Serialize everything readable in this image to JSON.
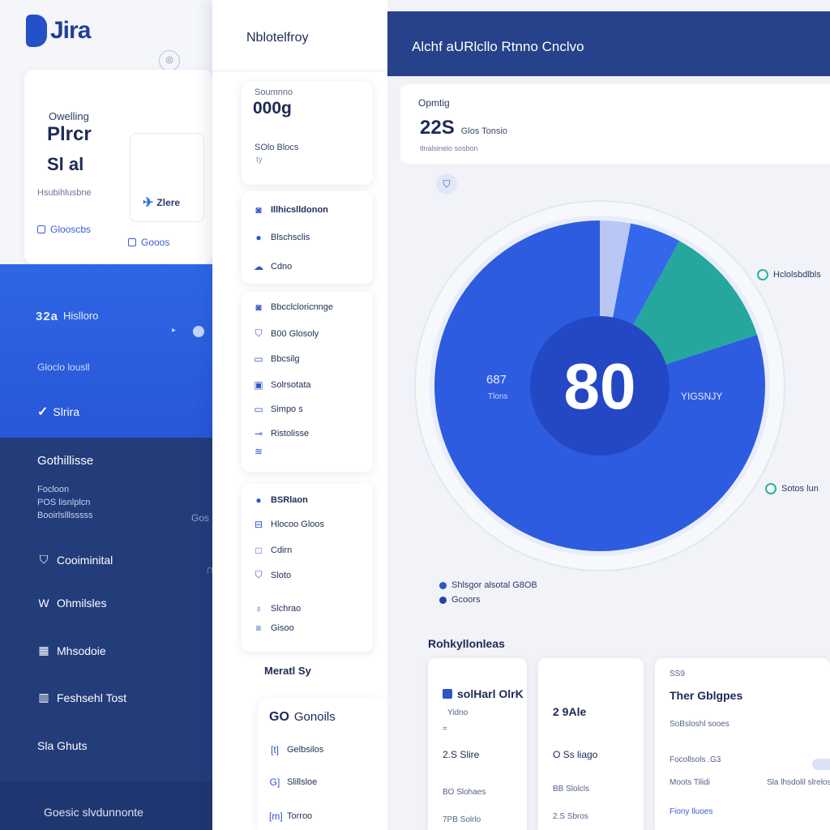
{
  "app": {
    "logo_text": "Jira"
  },
  "sidebar": {
    "profile_card": {
      "label": "Owelling",
      "title_line1": "Plrcr",
      "title_line2": "Sl al",
      "meta": "Hsubihlusbne",
      "inner_label": "Zlere",
      "link1": "Glooscbs",
      "link2": "Gooos"
    },
    "blue_section": {
      "item1_code": "32a",
      "item1_label": "Hislloro",
      "item2": "Gloclo lousll",
      "item3": "Slrira"
    },
    "dark_section": {
      "title": "Gothillisse",
      "line1": "Focloon",
      "line2": "POS lisnlplcn",
      "line3": "Booirlslllsssss",
      "right_text": "Gos",
      "nav": [
        {
          "label": "Cooiminital",
          "icon": "shield-icon"
        },
        {
          "label": "Ohmilsles",
          "icon": "w-icon"
        },
        {
          "label": "Mhsodoie",
          "icon": "grid-icon"
        },
        {
          "label": "Feshsehl Tost",
          "icon": "chart-icon"
        },
        {
          "label": "Sla Ghuts",
          "icon": "dot-icon"
        }
      ],
      "footer": "Goesic slvdunnonte"
    }
  },
  "mid_panel": {
    "title": "Nblotelfroy",
    "summary_card": {
      "label": "Soumnno",
      "value": "000g",
      "desc": "SOlo Blocs",
      "extra": "ty"
    },
    "card2": [
      {
        "label": "Illhicslldonon",
        "bold": true
      },
      {
        "label": "Blschsclis",
        "bold": false
      },
      {
        "label": "Cdno",
        "bold": false
      }
    ],
    "card3": [
      {
        "label": "Bbcclcloricnnge",
        "bold": false
      },
      {
        "label": "B00 Glosoly",
        "bold": false
      },
      {
        "label": "Bbcsilg",
        "bold": false
      },
      {
        "label": "Solrsotata",
        "bold": false
      },
      {
        "label": "Simpo s",
        "bold": false
      },
      {
        "label": "Ristolisse",
        "bold": false
      },
      {
        "label": "",
        "bold": false
      }
    ],
    "card4": [
      {
        "label": "BSRlaon",
        "bold": true
      },
      {
        "label": "Hlocoo Gloos",
        "bold": false
      },
      {
        "label": "Cdirn",
        "bold": false
      },
      {
        "label": "Sloto",
        "bold": false
      },
      {
        "label": "Slchrao",
        "bold": false
      },
      {
        "label": "Gisoo",
        "bold": false
      }
    ],
    "sub_title": "Meratl Sy",
    "card5": {
      "head_code": "GO",
      "head_label": "Gonoils",
      "items": [
        "Gelbsilos",
        "Slillsloe",
        "Torroo"
      ],
      "codes": [
        "[t]",
        "G]",
        "[m]"
      ]
    }
  },
  "main": {
    "header_title": "Alchf aURlcllo Rtnno Cnclvo",
    "stat": {
      "label": "Opmtig",
      "value": "22S",
      "value_note": "Glos Tonsio",
      "sub": "tlnalsinelo sosbon"
    },
    "chart_center_value": "80",
    "left_annotation": {
      "value": "687",
      "label": "Tlons"
    },
    "right_annotation": "YIGSNJY",
    "tags": [
      {
        "label": "Hclolsbdlbls"
      },
      {
        "label": "Sotos lun"
      }
    ],
    "legend": [
      {
        "label": "Shlsgor alsotal G8OB",
        "color": "#2d56c9"
      },
      {
        "label": "Gcoors",
        "color": "#2443a8"
      }
    ],
    "bottom_title": "Rohkyllonleas",
    "bottom_cards": [
      {
        "title": "solHarl OlrK",
        "lines": [
          "Yidno",
          "=",
          "2.S Slire",
          "BO Slohaes",
          "7PB Solrlo"
        ]
      },
      {
        "title": "2 9Ale",
        "lines": [
          "O Ss liago",
          "BB Slolcls",
          "2.S Sbros"
        ]
      },
      {
        "head": "SS9",
        "title": "Ther Gblgpes",
        "lines": [
          "SoBsloshl sooes",
          "Focollsols .G3",
          "Moots Tilidi",
          "Fiony lluoes"
        ],
        "right_text": "Sla lhsdolil slrelos"
      }
    ],
    "colors": {
      "primary": "#2d5ce0",
      "dark": "#233c7a",
      "teal": "#25a79d",
      "inner": "#2448c4"
    }
  },
  "chart_data": {
    "type": "pie",
    "title": "",
    "center_value": 80,
    "slices": [
      {
        "value": 80
      },
      {
        "value": 3
      },
      {
        "value": 5
      },
      {
        "value": 12
      }
    ]
  }
}
